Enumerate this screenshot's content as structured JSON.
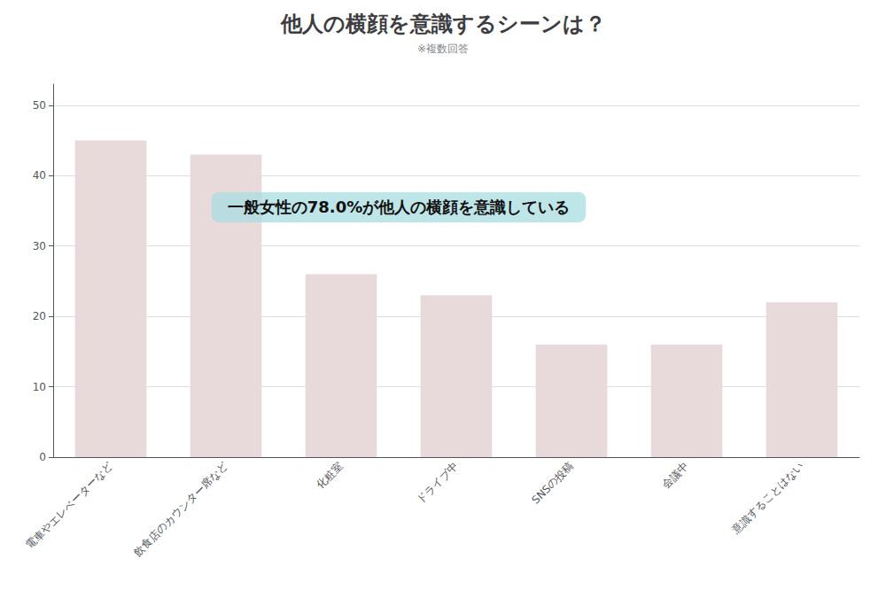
{
  "chart_data": {
    "type": "bar",
    "title": "他人の横顔を意識するシーンは？",
    "subtitle": "※複数回答",
    "categories": [
      "電車やエレベーターなど",
      "飲食店のカウンター席など",
      "化粧室",
      "ドライブ中",
      "SNSの投稿",
      "会議中",
      "意識することはない"
    ],
    "values": [
      45,
      43,
      26,
      23,
      16,
      16,
      22
    ],
    "color": "#e8dada",
    "ylim": [
      0,
      53
    ],
    "yticks": [
      0,
      10,
      20,
      30,
      40,
      50
    ],
    "grid": true,
    "annotations": [
      "一般女性の78.0%が他人の横顔を意識している"
    ]
  }
}
